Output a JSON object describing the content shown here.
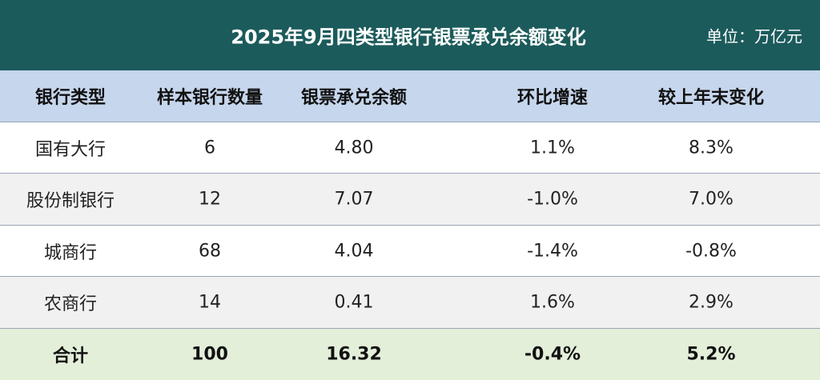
{
  "header": {
    "title": "2025年9月四类型银行银票承兑余额变化",
    "unit": "单位：万亿元"
  },
  "table": {
    "columns": [
      "银行类型",
      "样本银行数量",
      "银票承兑余额",
      "环比增速",
      "较上年末变化"
    ],
    "rows": [
      [
        "国有大行",
        "6",
        "4.80",
        "1.1%",
        "8.3%"
      ],
      [
        "股份制银行",
        "12",
        "7.07",
        "-1.0%",
        "7.0%"
      ],
      [
        "城商行",
        "68",
        "4.04",
        "-1.4%",
        "-0.8%"
      ],
      [
        "农商行",
        "14",
        "0.41",
        "1.6%",
        "2.9%"
      ]
    ],
    "total": [
      "合计",
      "100",
      "16.32",
      "-0.4%",
      "5.2%"
    ]
  }
}
